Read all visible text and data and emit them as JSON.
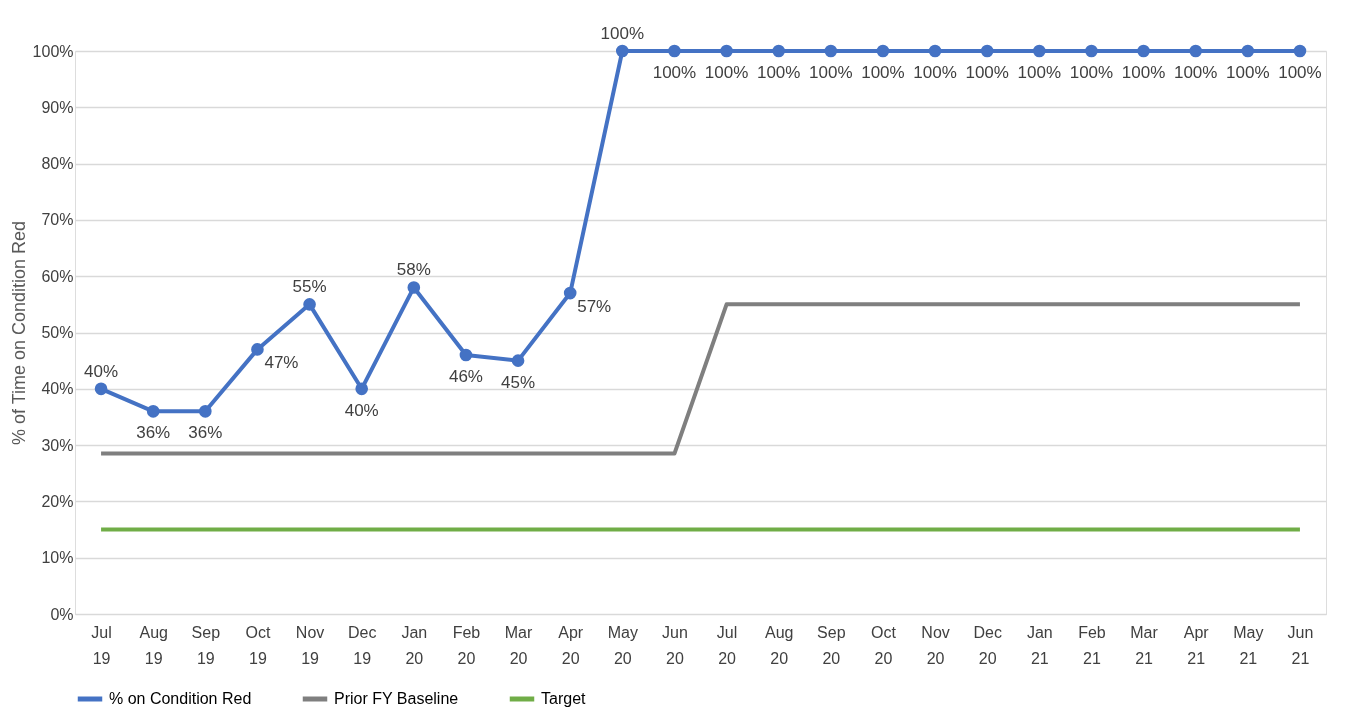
{
  "chart_data": {
    "type": "line",
    "ylabel": "% of Time on Condition Red",
    "categories": [
      "Jul 19",
      "Aug 19",
      "Sep 19",
      "Oct 19",
      "Nov 19",
      "Dec 19",
      "Jan 20",
      "Feb 20",
      "Mar 20",
      "Apr 20",
      "May 20",
      "Jun 20",
      "Jul 20",
      "Aug 20",
      "Sep 20",
      "Oct 20",
      "Nov 20",
      "Dec 20",
      "Jan 21",
      "Feb 21",
      "Mar 21",
      "Apr 21",
      "May 21",
      "Jun 21"
    ],
    "series": [
      {
        "name": "% on Condition Red",
        "color": "#4472c4",
        "marker": "circle",
        "values": [
          40,
          36,
          36,
          47,
          55,
          40,
          58,
          46,
          45,
          57,
          100,
          100,
          100,
          100,
          100,
          100,
          100,
          100,
          100,
          100,
          100,
          100,
          100,
          100
        ],
        "value_labels": [
          "40%",
          "36%",
          "36%",
          "47%",
          "55%",
          "40%",
          "58%",
          "46%",
          "45%",
          "57%",
          "100%",
          "100%",
          "100%",
          "100%",
          "100%",
          "100%",
          "100%",
          "100%",
          "100%",
          "100%",
          "100%",
          "100%",
          "100%",
          "100%"
        ]
      },
      {
        "name": "Prior FY Baseline",
        "color": "#7f7f7f",
        "marker": "none",
        "values": [
          28.5,
          28.5,
          28.5,
          28.5,
          28.5,
          28.5,
          28.5,
          28.5,
          28.5,
          28.5,
          28.5,
          28.5,
          55,
          55,
          55,
          55,
          55,
          55,
          55,
          55,
          55,
          55,
          55,
          55
        ]
      },
      {
        "name": "Target",
        "color": "#70ad47",
        "marker": "none",
        "values": [
          15,
          15,
          15,
          15,
          15,
          15,
          15,
          15,
          15,
          15,
          15,
          15,
          15,
          15,
          15,
          15,
          15,
          15,
          15,
          15,
          15,
          15,
          15,
          15
        ]
      }
    ],
    "ylim": [
      0,
      100
    ],
    "yticks": [
      {
        "value": 0,
        "label": "0%"
      },
      {
        "value": 10,
        "label": "10%"
      },
      {
        "value": 20,
        "label": "20%"
      },
      {
        "value": 30,
        "label": "30%"
      },
      {
        "value": 40,
        "label": "40%"
      },
      {
        "value": 50,
        "label": "50%"
      },
      {
        "value": 60,
        "label": "60%"
      },
      {
        "value": 70,
        "label": "70%"
      },
      {
        "value": 80,
        "label": "80%"
      },
      {
        "value": 90,
        "label": "90%"
      },
      {
        "value": 100,
        "label": "100%"
      }
    ],
    "grid": "y",
    "legend": "bottom",
    "line_style": "solid"
  }
}
